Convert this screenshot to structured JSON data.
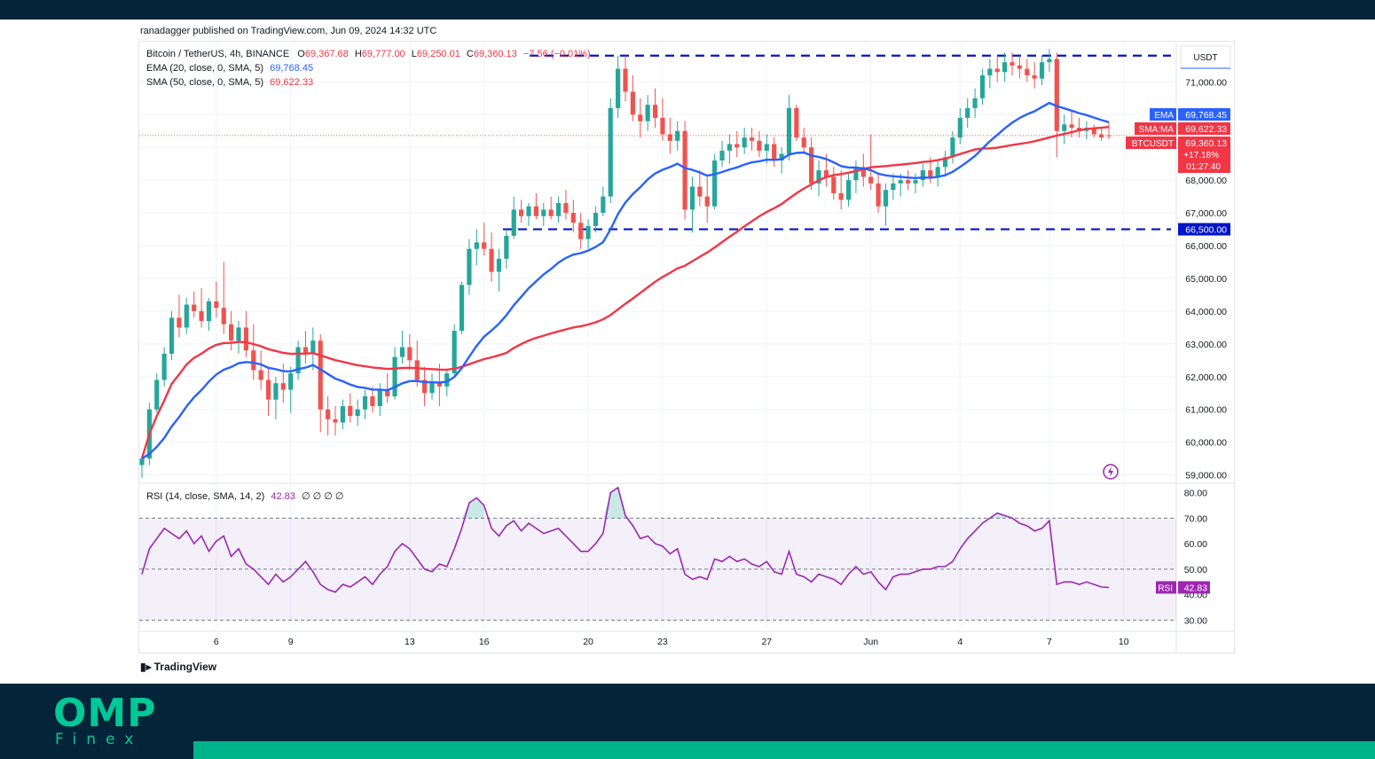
{
  "publish_line": "ranadagger published on TradingView.com, Jun 09, 2024 14:32 UTC",
  "legend": {
    "symbol": "Bitcoin / TetherUS, 4h, BINANCE",
    "o_label": "O",
    "o": "69,367.68",
    "h_label": "H",
    "h": "69,777.00",
    "l_label": "L",
    "l": "69,250.01",
    "c_label": "C",
    "c": "69,360.13",
    "change": "−7.56 (−0.01%)",
    "ema_name": "EMA (20, close, 0, SMA, 5)",
    "ema_value": "69,768.45",
    "sma_name": "SMA (50, close, 0, SMA, 5)",
    "sma_value": "69,622.33",
    "rsi_name": "RSI (14, close, SMA, 14, 2)",
    "rsi_value": "42.83",
    "rsi_extra": "∅ ∅ ∅ ∅"
  },
  "currency": "USDT",
  "tv_brand": "TradingView",
  "brand": {
    "main": "OMP",
    "sub": "Finex"
  },
  "colors": {
    "up": "#26a69a",
    "down": "#ef5350",
    "ema": "#2962ff",
    "sma": "#f23645",
    "rsi": "#9c27b0",
    "level": "#0014c8",
    "frame_dark": "#04243a",
    "brand_green": "#00c896"
  },
  "chart_data": {
    "type": "candlestick",
    "price_axis": {
      "ticks": [
        71000,
        70000,
        69000,
        68000,
        67000,
        66000,
        65000,
        64000,
        63000,
        62000,
        61000,
        60000,
        59000
      ],
      "tick_labels": [
        "71,000.00",
        "",
        "",
        "68,000.00",
        "67,000.00",
        "66,000.00",
        "65,000.00",
        "64,000.00",
        "63,000.00",
        "62,000.00",
        "61,000.00",
        "60,000.00",
        "59,000.00"
      ],
      "range": [
        58800,
        72200
      ]
    },
    "x_axis": {
      "labels": [
        "6",
        "9",
        "13",
        "16",
        "20",
        "23",
        "27",
        "Jun",
        "4",
        "7",
        "10"
      ],
      "label_bar_index": [
        10,
        20,
        36,
        46,
        60,
        70,
        84,
        98,
        110,
        122,
        132
      ]
    },
    "levels": [
      {
        "price": 71800,
        "label": ""
      },
      {
        "price": 66500,
        "label": "66,500.00"
      }
    ],
    "price_tags": [
      {
        "name": "EMA",
        "value": "69,768.45"
      },
      {
        "name": "SMA:MA",
        "value": "69,622.33"
      },
      {
        "name": "BTCUSDT",
        "value": "69,360.13",
        "change": "+17.18%",
        "countdown": "01:27:40"
      }
    ],
    "ohlc": [
      [
        59300,
        59600,
        58900,
        59500
      ],
      [
        59500,
        61200,
        59300,
        61000
      ],
      [
        61000,
        62100,
        60900,
        61900
      ],
      [
        61900,
        62900,
        61700,
        62700
      ],
      [
        62700,
        64000,
        62500,
        63800
      ],
      [
        63800,
        64500,
        63200,
        63500
      ],
      [
        63500,
        64400,
        63300,
        64200
      ],
      [
        64200,
        64600,
        63800,
        64000
      ],
      [
        64000,
        64700,
        63500,
        63700
      ],
      [
        63700,
        64400,
        63400,
        64300
      ],
      [
        64300,
        64900,
        63800,
        64100
      ],
      [
        64100,
        65500,
        63300,
        63600
      ],
      [
        63600,
        64000,
        62800,
        63100
      ],
      [
        63100,
        63700,
        62700,
        63500
      ],
      [
        63500,
        64000,
        62600,
        62800
      ],
      [
        62800,
        63600,
        61900,
        62200
      ],
      [
        62200,
        62800,
        61600,
        61900
      ],
      [
        61900,
        62300,
        60800,
        61300
      ],
      [
        61300,
        62000,
        60700,
        61800
      ],
      [
        61800,
        62400,
        61200,
        61600
      ],
      [
        61600,
        62300,
        60900,
        62100
      ],
      [
        62100,
        63100,
        61900,
        62900
      ],
      [
        62900,
        63400,
        62400,
        62700
      ],
      [
        62700,
        63500,
        62200,
        63100
      ],
      [
        63100,
        63300,
        60300,
        61000
      ],
      [
        61000,
        61400,
        60200,
        60700
      ],
      [
        60700,
        61100,
        60200,
        60600
      ],
      [
        60600,
        61300,
        60400,
        61100
      ],
      [
        61100,
        61500,
        60600,
        60800
      ],
      [
        60800,
        61300,
        60500,
        61000
      ],
      [
        61000,
        61600,
        60700,
        61400
      ],
      [
        61400,
        61700,
        60900,
        61100
      ],
      [
        61100,
        61800,
        60800,
        61600
      ],
      [
        61600,
        62100,
        61200,
        61400
      ],
      [
        61400,
        62900,
        61300,
        62600
      ],
      [
        62600,
        63400,
        62400,
        62900
      ],
      [
        62900,
        63300,
        62200,
        62500
      ],
      [
        62500,
        63100,
        61700,
        61900
      ],
      [
        61900,
        62300,
        61100,
        61500
      ],
      [
        61500,
        62100,
        61300,
        61800
      ],
      [
        61800,
        62400,
        61100,
        61700
      ],
      [
        61700,
        62200,
        61400,
        62100
      ],
      [
        62100,
        63600,
        62000,
        63400
      ],
      [
        63400,
        64900,
        63300,
        64800
      ],
      [
        64800,
        66200,
        64500,
        65900
      ],
      [
        65900,
        66500,
        65400,
        66100
      ],
      [
        66100,
        66700,
        65700,
        65900
      ],
      [
        65900,
        66400,
        64900,
        65200
      ],
      [
        65200,
        65900,
        64600,
        65600
      ],
      [
        65600,
        66500,
        65300,
        66300
      ],
      [
        66300,
        67500,
        66200,
        67100
      ],
      [
        67100,
        67400,
        66700,
        66900
      ],
      [
        66900,
        67300,
        66600,
        67200
      ],
      [
        67200,
        67600,
        66800,
        66900
      ],
      [
        66900,
        67300,
        66600,
        67100
      ],
      [
        67100,
        67500,
        66800,
        66900
      ],
      [
        66900,
        67500,
        66700,
        67300
      ],
      [
        67300,
        67700,
        66800,
        67000
      ],
      [
        67000,
        67400,
        66400,
        66700
      ],
      [
        66700,
        67000,
        65900,
        66200
      ],
      [
        66200,
        66800,
        65900,
        66600
      ],
      [
        66600,
        67200,
        66400,
        67000
      ],
      [
        67000,
        67800,
        66900,
        67500
      ],
      [
        67500,
        70500,
        67300,
        70200
      ],
      [
        70200,
        71800,
        69900,
        71400
      ],
      [
        71400,
        71800,
        70400,
        70700
      ],
      [
        70700,
        71200,
        69800,
        70000
      ],
      [
        70000,
        70500,
        69300,
        69800
      ],
      [
        69800,
        70600,
        69500,
        70300
      ],
      [
        70300,
        70800,
        69600,
        69900
      ],
      [
        69900,
        70500,
        69200,
        69400
      ],
      [
        69400,
        69900,
        68800,
        69200
      ],
      [
        69200,
        69800,
        68900,
        69500
      ],
      [
        69500,
        69800,
        66800,
        67100
      ],
      [
        67100,
        68100,
        66400,
        67800
      ],
      [
        67800,
        68300,
        67200,
        67500
      ],
      [
        67500,
        68100,
        66700,
        67200
      ],
      [
        67200,
        68800,
        67100,
        68600
      ],
      [
        68600,
        69200,
        68400,
        68900
      ],
      [
        68900,
        69400,
        68500,
        69100
      ],
      [
        69100,
        69500,
        68700,
        69000
      ],
      [
        69000,
        69600,
        68800,
        69300
      ],
      [
        69300,
        69600,
        68900,
        69200
      ],
      [
        69200,
        69500,
        68700,
        68900
      ],
      [
        68900,
        69400,
        68500,
        69100
      ],
      [
        69100,
        69300,
        68400,
        68600
      ],
      [
        68600,
        69000,
        68200,
        68800
      ],
      [
        68800,
        70600,
        68600,
        70200
      ],
      [
        70200,
        70300,
        69200,
        69300
      ],
      [
        69300,
        69600,
        68800,
        69000
      ],
      [
        69000,
        69300,
        67700,
        67900
      ],
      [
        67900,
        68600,
        67500,
        68300
      ],
      [
        68300,
        68800,
        67800,
        68100
      ],
      [
        68100,
        68400,
        67400,
        67600
      ],
      [
        67600,
        68300,
        67100,
        67400
      ],
      [
        67400,
        68200,
        67200,
        68000
      ],
      [
        68000,
        68600,
        67600,
        68400
      ],
      [
        68400,
        68800,
        67800,
        68100
      ],
      [
        68100,
        69400,
        67700,
        67900
      ],
      [
        67900,
        68200,
        67000,
        67200
      ],
      [
        67200,
        67900,
        66600,
        67700
      ],
      [
        67700,
        68200,
        67400,
        67900
      ],
      [
        67900,
        68200,
        67500,
        68000
      ],
      [
        68000,
        68300,
        67700,
        67900
      ],
      [
        67900,
        68200,
        67600,
        68000
      ],
      [
        68000,
        68500,
        67800,
        68300
      ],
      [
        68300,
        68700,
        67900,
        68100
      ],
      [
        68100,
        68600,
        67800,
        68400
      ],
      [
        68400,
        68900,
        68100,
        68700
      ],
      [
        68700,
        69500,
        68500,
        69300
      ],
      [
        69300,
        70200,
        69100,
        69900
      ],
      [
        69900,
        70500,
        69600,
        70200
      ],
      [
        70200,
        70800,
        69900,
        70500
      ],
      [
        70500,
        71400,
        70300,
        71200
      ],
      [
        71200,
        71700,
        70800,
        71400
      ],
      [
        71400,
        71800,
        71000,
        71300
      ],
      [
        71300,
        71900,
        71000,
        71600
      ],
      [
        71600,
        71900,
        71200,
        71500
      ],
      [
        71500,
        71800,
        71100,
        71400
      ],
      [
        71400,
        71700,
        71000,
        71200
      ],
      [
        71200,
        71600,
        70800,
        71100
      ],
      [
        71100,
        71800,
        70900,
        71600
      ],
      [
        71600,
        72000,
        71300,
        71700
      ],
      [
        71700,
        71900,
        68700,
        69500
      ],
      [
        69500,
        70000,
        69100,
        69700
      ],
      [
        69700,
        70100,
        69300,
        69600
      ],
      [
        69600,
        69900,
        69300,
        69500
      ],
      [
        69500,
        69800,
        69250,
        69600
      ],
      [
        69600,
        69700,
        69300,
        69400
      ],
      [
        69400,
        69600,
        69200,
        69300
      ],
      [
        69367.68,
        69777,
        69250.01,
        69360.13
      ]
    ],
    "ema": {
      "name": "EMA",
      "label": "EMA (20, close, 0, SMA, 5)",
      "last": 69768.45
    },
    "sma": {
      "name": "SMA:MA",
      "label": "SMA (50, close, 0, SMA, 5)",
      "last": 69622.33
    },
    "rsi": {
      "label": "RSI (14, close, SMA, 14, 2)",
      "last": 42.83,
      "ticks": [
        "80.00",
        "70.00",
        "60.00",
        "50.00",
        "40.00",
        "30.00"
      ],
      "range": [
        27,
        83
      ],
      "bands": [
        70,
        50,
        30
      ],
      "values": [
        48,
        58,
        62,
        66,
        64,
        62,
        65,
        60,
        63,
        57,
        61,
        63,
        55,
        58,
        52,
        50,
        47,
        44,
        48,
        45,
        47,
        50,
        53,
        49,
        44,
        42,
        41,
        44,
        43,
        45,
        47,
        44,
        48,
        51,
        57,
        60,
        58,
        54,
        50,
        49,
        52,
        51,
        58,
        66,
        76,
        78,
        75,
        66,
        63,
        67,
        69,
        65,
        68,
        66,
        64,
        65,
        66,
        63,
        60,
        57,
        57,
        60,
        64,
        80,
        82,
        71,
        67,
        62,
        63,
        60,
        59,
        56,
        58,
        48,
        46,
        47,
        46,
        54,
        53,
        55,
        53,
        54,
        52,
        51,
        53,
        49,
        48,
        57,
        48,
        47,
        45,
        48,
        47,
        46,
        44,
        48,
        51,
        48,
        49,
        45,
        42,
        47,
        48,
        48,
        49,
        50,
        50,
        51,
        51,
        53,
        58,
        62,
        65,
        68,
        70,
        72,
        71,
        70,
        68,
        67,
        65,
        66,
        69,
        44,
        45,
        45,
        44,
        45,
        44,
        43,
        42.83
      ]
    },
    "last_price_label": "69,360.13"
  }
}
